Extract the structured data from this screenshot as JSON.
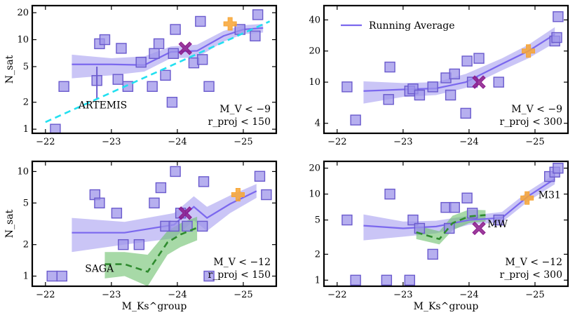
{
  "chart_data": [
    {
      "type": "scatter",
      "panel": "top-left",
      "ylabel": "N_sat",
      "xlabel": "",
      "xlim": [
        -21.8,
        -25.5
      ],
      "ylim": [
        0.9,
        24
      ],
      "yticks": [
        1,
        2,
        5,
        10,
        20
      ],
      "xticks": [
        -22,
        -23,
        -24,
        -25
      ],
      "annotation_lines": [
        "M_V < −9",
        "r_proj < 150"
      ],
      "labels": [
        {
          "text": "ARTEMIS",
          "x": -22.5,
          "y": 1.7,
          "color": "#22e0f0"
        }
      ],
      "points": [
        {
          "x": -22.15,
          "y": 1.0
        },
        {
          "x": -22.28,
          "y": 3.0
        },
        {
          "x": -22.78,
          "y": 3.5
        },
        {
          "x": -22.82,
          "y": 9.0
        },
        {
          "x": -22.9,
          "y": 10.0
        },
        {
          "x": -23.1,
          "y": 3.6
        },
        {
          "x": -23.15,
          "y": 8.0
        },
        {
          "x": -23.25,
          "y": 3.0
        },
        {
          "x": -23.45,
          "y": 5.6
        },
        {
          "x": -23.62,
          "y": 3.0
        },
        {
          "x": -23.65,
          "y": 7.0
        },
        {
          "x": -23.72,
          "y": 9.0
        },
        {
          "x": -23.82,
          "y": 4.0
        },
        {
          "x": -23.92,
          "y": 2.0
        },
        {
          "x": -23.94,
          "y": 7.0
        },
        {
          "x": -23.97,
          "y": 13.0
        },
        {
          "x": -24.25,
          "y": 5.5
        },
        {
          "x": -24.35,
          "y": 16.0
        },
        {
          "x": -24.38,
          "y": 6.0
        },
        {
          "x": -24.48,
          "y": 3.0
        },
        {
          "x": -24.95,
          "y": 13.0
        },
        {
          "x": -25.18,
          "y": 11.0
        },
        {
          "x": -25.22,
          "y": 19.0
        }
      ],
      "error_points": [
        {
          "x": -22.78,
          "y": 3.5,
          "low": 2.2,
          "high": 5.0
        }
      ],
      "running_average": {
        "x": [
          -22.4,
          -23.0,
          -23.5,
          -23.9,
          -24.3,
          -24.7,
          -25.0,
          -25.3
        ],
        "y": [
          5.3,
          5.3,
          5.2,
          7.3,
          7.5,
          11.0,
          13.0,
          13.5
        ],
        "low": [
          3.7,
          4.0,
          4.4,
          6.2,
          6.3,
          9.5,
          11.5,
          12.0
        ],
        "high": [
          6.8,
          6.2,
          6.5,
          8.4,
          8.8,
          12.5,
          14.5,
          15.0
        ]
      },
      "model_line": {
        "name": "ARTEMIS",
        "x": [
          -22.0,
          -25.4
        ],
        "y": [
          1.2,
          16.0
        ]
      },
      "mw": {
        "x": -24.12,
        "y": 8.0
      },
      "m31": {
        "x": -24.8,
        "y": 15.0
      }
    },
    {
      "type": "scatter",
      "panel": "top-right",
      "ylabel": "",
      "xlabel": "",
      "xlim": [
        -21.8,
        -25.5
      ],
      "ylim": [
        3.2,
        55
      ],
      "yticks": [
        4,
        10,
        20,
        40
      ],
      "xticks": [
        -22,
        -23,
        -24,
        -25
      ],
      "legend": {
        "label": "Running Average",
        "position": "top-left"
      },
      "annotation_lines": [
        "M_V < −9",
        "r_proj < 300"
      ],
      "points": [
        {
          "x": -22.15,
          "y": 9.0
        },
        {
          "x": -22.28,
          "y": 4.3
        },
        {
          "x": -22.78,
          "y": 6.8
        },
        {
          "x": -22.8,
          "y": 14.0
        },
        {
          "x": -23.1,
          "y": 8.2
        },
        {
          "x": -23.15,
          "y": 8.6
        },
        {
          "x": -23.25,
          "y": 7.5
        },
        {
          "x": -23.45,
          "y": 9.0
        },
        {
          "x": -23.65,
          "y": 11.0
        },
        {
          "x": -23.72,
          "y": 7.5
        },
        {
          "x": -23.78,
          "y": 12.0
        },
        {
          "x": -23.95,
          "y": 5.0
        },
        {
          "x": -23.97,
          "y": 16.0
        },
        {
          "x": -24.05,
          "y": 10.0
        },
        {
          "x": -24.15,
          "y": 17.0
        },
        {
          "x": -24.45,
          "y": 10.0
        },
        {
          "x": -25.3,
          "y": 25.0
        },
        {
          "x": -25.33,
          "y": 27.0
        },
        {
          "x": -25.35,
          "y": 43.0
        }
      ],
      "error_points": [],
      "running_average": {
        "x": [
          -22.4,
          -23.0,
          -23.5,
          -23.95,
          -24.5,
          -24.9,
          -25.3
        ],
        "y": [
          8.2,
          8.5,
          8.7,
          10.0,
          15.0,
          20.0,
          29.0
        ],
        "low": [
          6.2,
          7.2,
          7.5,
          8.8,
          13.0,
          17.0,
          24.0
        ],
        "high": [
          10.2,
          9.8,
          10.0,
          12.0,
          17.0,
          23.0,
          34.0
        ]
      },
      "mw": {
        "x": -24.15,
        "y": 10.0
      },
      "m31": {
        "x": -24.9,
        "y": 20.0
      }
    },
    {
      "type": "scatter",
      "panel": "bottom-left",
      "ylabel": "N_sat",
      "xlabel": "M_Ks^group",
      "xlim": [
        -21.8,
        -25.5
      ],
      "ylim": [
        0.8,
        12.5
      ],
      "yticks": [
        1,
        2,
        5,
        10
      ],
      "xticks": [
        -22,
        -23,
        -24,
        -25
      ],
      "annotation_lines": [
        "M_V < −12",
        "r_proj < 150"
      ],
      "labels": [
        {
          "text": "SAGA",
          "x": -22.6,
          "y": 1.1,
          "color": "#2e8b2e"
        }
      ],
      "points": [
        {
          "x": -22.1,
          "y": 1.0
        },
        {
          "x": -22.25,
          "y": 1.0
        },
        {
          "x": -22.75,
          "y": 6.0
        },
        {
          "x": -22.82,
          "y": 5.0
        },
        {
          "x": -23.08,
          "y": 4.0
        },
        {
          "x": -23.18,
          "y": 2.0
        },
        {
          "x": -23.42,
          "y": 2.0
        },
        {
          "x": -23.65,
          "y": 5.0
        },
        {
          "x": -23.75,
          "y": 7.0
        },
        {
          "x": -23.82,
          "y": 3.0
        },
        {
          "x": -23.95,
          "y": 3.0
        },
        {
          "x": -23.97,
          "y": 10.0
        },
        {
          "x": -24.05,
          "y": 4.0
        },
        {
          "x": -24.15,
          "y": 3.0
        },
        {
          "x": -24.38,
          "y": 3.0
        },
        {
          "x": -24.4,
          "y": 8.0
        },
        {
          "x": -24.48,
          "y": 1.0
        },
        {
          "x": -25.25,
          "y": 9.0
        },
        {
          "x": -25.35,
          "y": 6.0
        }
      ],
      "error_points": [],
      "running_average": {
        "x": [
          -22.4,
          -23.2,
          -23.95,
          -24.25,
          -24.45,
          -24.8,
          -25.2
        ],
        "y": [
          2.6,
          2.6,
          3.1,
          4.6,
          3.6,
          4.9,
          6.5
        ],
        "low": [
          1.7,
          2.0,
          2.3,
          3.4,
          2.7,
          4.0,
          5.6
        ],
        "high": [
          3.6,
          3.3,
          4.0,
          5.8,
          4.6,
          5.9,
          7.6
        ]
      },
      "model_line": {
        "name": "SAGA",
        "x": [
          -22.9,
          -23.2,
          -23.55,
          -23.85,
          -24.05,
          -24.3
        ],
        "y": [
          1.3,
          1.3,
          1.1,
          2.1,
          2.5,
          2.9
        ],
        "low": [
          0.95,
          1.0,
          0.8,
          1.6,
          1.9,
          2.2
        ],
        "high": [
          1.7,
          1.7,
          1.6,
          2.7,
          3.2,
          3.7
        ]
      },
      "mw": {
        "x": -24.12,
        "y": 4.0
      },
      "m31": {
        "x": -24.92,
        "y": 6.0
      }
    },
    {
      "type": "scatter",
      "panel": "bottom-right",
      "ylabel": "",
      "xlabel": "M_Ks^group",
      "xlim": [
        -21.8,
        -25.5
      ],
      "ylim": [
        0.85,
        24
      ],
      "yticks": [
        1,
        2,
        5,
        10,
        20
      ],
      "xticks": [
        -22,
        -23,
        -24,
        -25
      ],
      "annotation_lines": [
        "M_V < −12",
        "r_proj < 300"
      ],
      "labels": [
        {
          "text": "MW",
          "x": -24.28,
          "y": 4.1,
          "color": "#8b1a8b"
        },
        {
          "text": "M31",
          "x": -25.05,
          "y": 9.0,
          "color": "#f7a534"
        }
      ],
      "points": [
        {
          "x": -22.15,
          "y": 5.0
        },
        {
          "x": -22.28,
          "y": 1.0
        },
        {
          "x": -22.75,
          "y": 1.0
        },
        {
          "x": -22.8,
          "y": 10.0
        },
        {
          "x": -23.1,
          "y": 1.0
        },
        {
          "x": -23.15,
          "y": 5.0
        },
        {
          "x": -23.25,
          "y": 4.0
        },
        {
          "x": -23.45,
          "y": 2.0
        },
        {
          "x": -23.65,
          "y": 7.0
        },
        {
          "x": -23.7,
          "y": 4.0
        },
        {
          "x": -23.78,
          "y": 7.0
        },
        {
          "x": -23.97,
          "y": 9.0
        },
        {
          "x": -24.05,
          "y": 6.0
        },
        {
          "x": -24.45,
          "y": 5.0
        },
        {
          "x": -25.22,
          "y": 16.0
        },
        {
          "x": -25.3,
          "y": 18.0
        },
        {
          "x": -25.35,
          "y": 20.0
        }
      ],
      "error_points": [],
      "running_average": {
        "x": [
          -22.4,
          -23.0,
          -23.5,
          -24.0,
          -24.5,
          -24.9,
          -25.3
        ],
        "y": [
          4.3,
          4.0,
          4.2,
          5.0,
          5.3,
          9.5,
          15.0
        ],
        "low": [
          2.9,
          3.2,
          3.5,
          4.4,
          4.7,
          8.3,
          13.0
        ],
        "high": [
          5.8,
          4.8,
          4.9,
          5.6,
          6.2,
          10.8,
          17.0
        ]
      },
      "model_line": {
        "name": "SAGA",
        "x": [
          -23.2,
          -23.55,
          -23.75,
          -24.0,
          -24.25
        ],
        "y": [
          3.6,
          3.0,
          4.6,
          5.5,
          5.7
        ],
        "low": [
          3.0,
          2.6,
          3.8,
          4.6,
          4.8
        ],
        "high": [
          4.3,
          3.7,
          5.6,
          6.6,
          6.5
        ]
      },
      "mw": {
        "x": -24.15,
        "y": 4.0
      },
      "m31": {
        "x": -24.88,
        "y": 9.0
      }
    }
  ],
  "colors": {
    "running_average": "#7b68ee",
    "running_average_band": "#b4acf2",
    "points_fill": "#9d94ea",
    "points_edge": "#6a5acd",
    "artemis": "#22e0f0",
    "saga": "#2e8b2e",
    "saga_band": "#6cbf6c",
    "mw": "#8b1a8b",
    "m31": "#f7a534",
    "errorbar_dotted": "#777777"
  }
}
